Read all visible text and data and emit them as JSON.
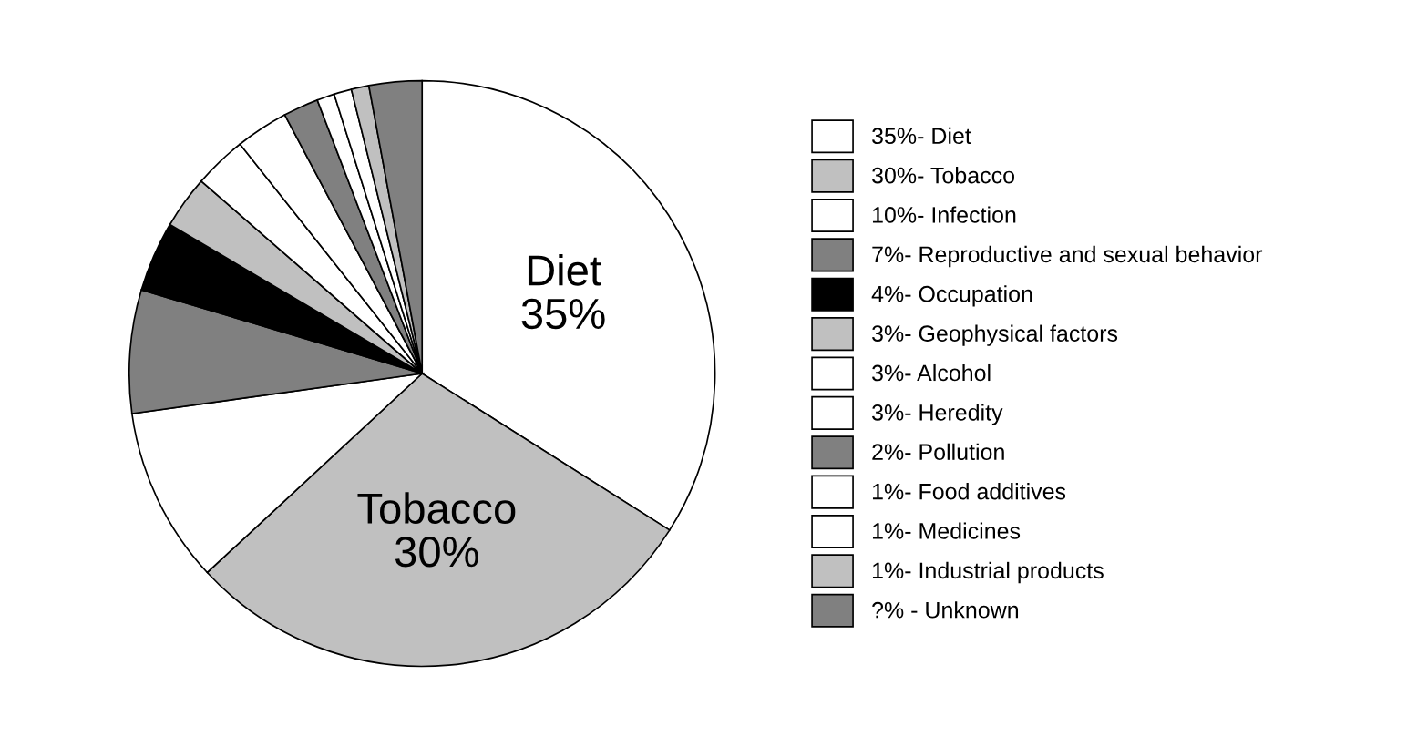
{
  "chart_data": {
    "type": "pie",
    "categories": [
      "35%- Diet",
      "30%- Tobacco",
      "10%- Infection",
      "7%- Reproductive and sexual behavior",
      "4%- Occupation",
      "3%- Geophysical factors",
      "3%- Alcohol",
      "3%- Heredity",
      "2%- Pollution",
      "1%- Food additives",
      "1%- Medicines",
      "1%- Industrial products",
      "?% - Unknown"
    ],
    "values": [
      35,
      30,
      10,
      7,
      4,
      3,
      3,
      3,
      2,
      1,
      1,
      1,
      3
    ],
    "colors": [
      "#ffffff",
      "#c0c0c0",
      "#ffffff",
      "#808080",
      "#000000",
      "#c0c0c0",
      "#ffffff",
      "#ffffff",
      "#808080",
      "#ffffff",
      "#ffffff",
      "#c0c0c0",
      "#808080"
    ],
    "annotations": [
      {
        "text": "Diet\n35%",
        "x": "35%- Diet"
      },
      {
        "text": "Tobacco\n30%",
        "x": "30%- Tobacco"
      }
    ],
    "legend": "right"
  }
}
